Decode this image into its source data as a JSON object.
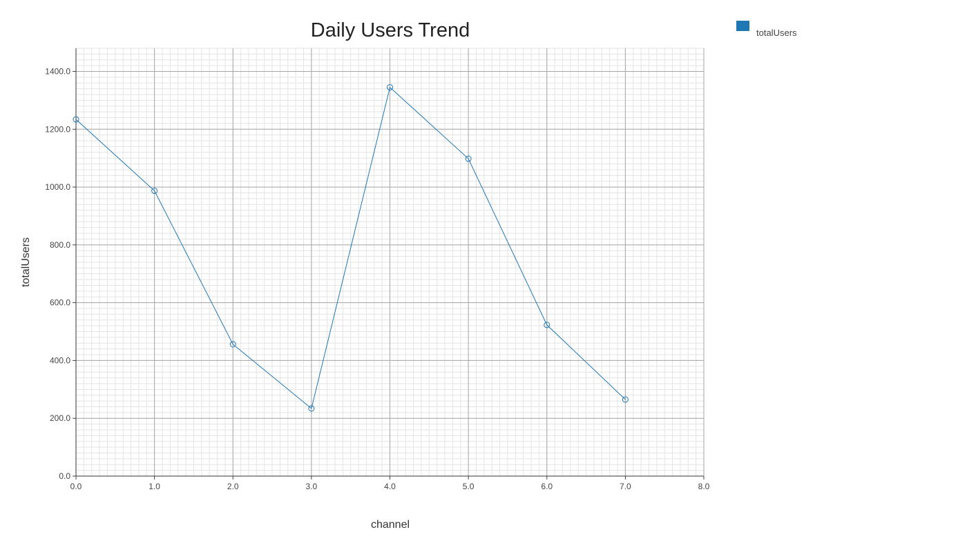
{
  "chart_data": {
    "type": "line",
    "title": "Daily Users Trend",
    "xlabel": "channel",
    "ylabel": "totalUsers",
    "xlim": [
      0,
      8
    ],
    "ylim": [
      0,
      1480
    ],
    "x_ticks": [
      "0.0",
      "1.0",
      "2.0",
      "3.0",
      "4.0",
      "5.0",
      "6.0",
      "7.0",
      "8.0"
    ],
    "y_ticks": [
      "0.0",
      "200.0",
      "400.0",
      "600.0",
      "800.0",
      "1000.0",
      "1200.0",
      "1400.0"
    ],
    "grid": true,
    "legend_position": "top-right",
    "series": [
      {
        "name": "totalUsers",
        "color": "#1f77b4",
        "marker": "circle",
        "x": [
          0,
          1,
          2,
          3,
          4,
          5,
          6,
          7
        ],
        "y": [
          1234,
          987,
          456,
          234,
          1345,
          1098,
          523,
          265
        ]
      }
    ]
  }
}
